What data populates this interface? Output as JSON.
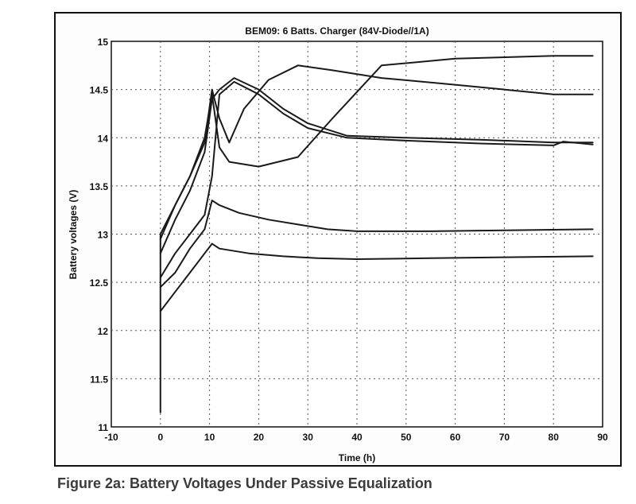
{
  "caption": "Figure 2a: Battery Voltages Under Passive Equalization",
  "chart_data": {
    "type": "line",
    "title": "BEM09: 6 Batts. Charger (84V-Diode//1A)",
    "xlabel": "Time (h)",
    "ylabel": "Battery voltages (V)",
    "xlim": [
      -10,
      90
    ],
    "ylim": [
      11,
      15
    ],
    "xticks": [
      -10,
      0,
      10,
      20,
      30,
      40,
      50,
      60,
      70,
      80,
      90
    ],
    "yticks": [
      11,
      11.5,
      12,
      12.5,
      13,
      13.5,
      14,
      14.5,
      15
    ],
    "grid": true,
    "line_color": "#1a1a1a",
    "series": [
      {
        "x": [
          0,
          0,
          3,
          6,
          9,
          10.5,
          12,
          14,
          17,
          22,
          28,
          35,
          45,
          60,
          80,
          88
        ],
        "y": [
          11.15,
          13.0,
          13.3,
          13.6,
          13.95,
          14.5,
          14.2,
          13.95,
          14.3,
          14.6,
          14.75,
          14.7,
          14.62,
          14.55,
          14.45,
          14.45
        ]
      },
      {
        "x": [
          0,
          3,
          6,
          9,
          10.5,
          12,
          14,
          20,
          28,
          35,
          45,
          60,
          80,
          88
        ],
        "y": [
          12.95,
          13.3,
          13.6,
          14.0,
          14.45,
          13.9,
          13.75,
          13.7,
          13.8,
          14.2,
          14.75,
          14.82,
          14.85,
          14.85
        ]
      },
      {
        "x": [
          0,
          3,
          6,
          9,
          10.5,
          12,
          15,
          20,
          25,
          30,
          38,
          50,
          65,
          80,
          88
        ],
        "y": [
          12.8,
          13.15,
          13.45,
          13.85,
          14.4,
          14.5,
          14.62,
          14.5,
          14.3,
          14.15,
          14.02,
          14.0,
          13.98,
          13.95,
          13.95
        ]
      },
      {
        "x": [
          0,
          3,
          6,
          9,
          10.5,
          12,
          15,
          20,
          25,
          30,
          38,
          50,
          65,
          80,
          82,
          88
        ],
        "y": [
          12.55,
          12.8,
          13.0,
          13.2,
          13.6,
          14.45,
          14.58,
          14.45,
          14.25,
          14.1,
          14.0,
          13.97,
          13.94,
          13.92,
          13.96,
          13.93
        ]
      },
      {
        "x": [
          0,
          3,
          6,
          9,
          10.5,
          12,
          16,
          22,
          28,
          34,
          40,
          55,
          70,
          88
        ],
        "y": [
          12.45,
          12.6,
          12.85,
          13.05,
          13.35,
          13.3,
          13.22,
          13.15,
          13.1,
          13.05,
          13.03,
          13.03,
          13.04,
          13.05
        ]
      },
      {
        "x": [
          0,
          3,
          6,
          9,
          10.5,
          12,
          18,
          25,
          32,
          40,
          55,
          70,
          88
        ],
        "y": [
          12.2,
          12.4,
          12.6,
          12.8,
          12.9,
          12.85,
          12.8,
          12.77,
          12.75,
          12.74,
          12.75,
          12.76,
          12.77
        ]
      }
    ]
  }
}
